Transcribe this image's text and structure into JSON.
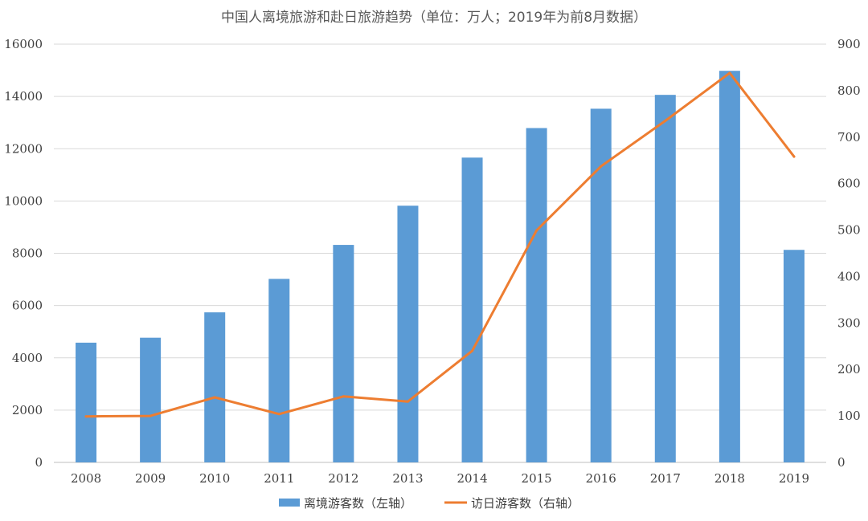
{
  "chart_data": {
    "type": "bar",
    "title": "中国人离境旅游和赴日旅游趋势（单位：万人；2019年为前8月数据）",
    "categories": [
      "2008",
      "2009",
      "2010",
      "2011",
      "2012",
      "2013",
      "2014",
      "2015",
      "2016",
      "2017",
      "2018",
      "2019"
    ],
    "series": [
      {
        "name": "离境游客数（左轴）",
        "type": "bar",
        "axis": "left",
        "color": "#5b9bd5",
        "values": [
          4580,
          4770,
          5740,
          7020,
          8320,
          9820,
          11660,
          12790,
          13530,
          14060,
          14980,
          8130
        ]
      },
      {
        "name": "访日游客数（右轴）",
        "type": "line",
        "axis": "right",
        "color": "#ed7d31",
        "values": [
          99,
          100,
          140,
          104,
          142,
          131,
          240,
          499,
          637,
          735,
          838,
          658
        ]
      }
    ],
    "left_axis": {
      "min": 0,
      "max": 16000,
      "ticks": [
        "0",
        "2000",
        "4000",
        "6000",
        "8000",
        "10000",
        "12000",
        "14000",
        "16000"
      ]
    },
    "right_axis": {
      "min": 0,
      "max": 900,
      "ticks": [
        "0",
        "100",
        "200",
        "300",
        "400",
        "500",
        "600",
        "700",
        "800",
        "900"
      ]
    },
    "grid": true,
    "legend_position": "bottom"
  }
}
